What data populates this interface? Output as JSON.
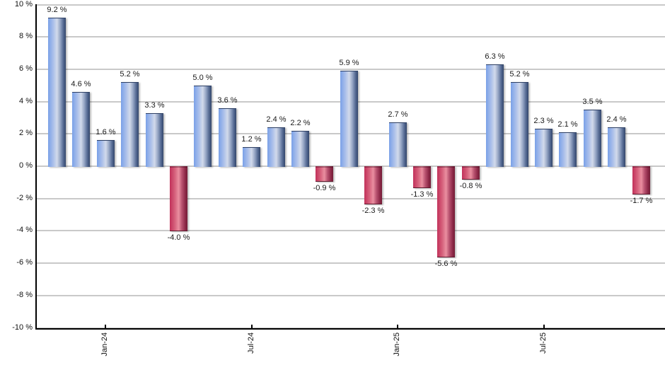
{
  "chart_data": {
    "type": "bar",
    "title": "",
    "xlabel": "",
    "ylabel": "",
    "ylim": [
      -10,
      10
    ],
    "y_step": 2,
    "grid": "on",
    "legend": "none",
    "y_tick_labels": [
      "10 %",
      "8 %",
      "6 %",
      "4 %",
      "2 %",
      "0 %",
      "-2 %",
      "-4 %",
      "-6 %",
      "-8 %",
      "-10 %"
    ],
    "values": [
      9.2,
      4.6,
      1.6,
      5.2,
      3.3,
      -4.0,
      5.0,
      3.6,
      1.2,
      2.4,
      2.2,
      -0.9,
      5.9,
      -2.3,
      2.7,
      -1.3,
      -5.6,
      -0.8,
      6.3,
      5.2,
      2.3,
      2.1,
      3.5,
      2.4,
      -1.7
    ],
    "data_labels": [
      "9.2 %",
      "4.6 %",
      "1.6 %",
      "5.2 %",
      "3.3 %",
      "-4.0 %",
      "5.0 %",
      "3.6 %",
      "1.2 %",
      "2.4 %",
      "2.2 %",
      "-0.9 %",
      "5.9 %",
      "-2.3 %",
      "2.7 %",
      "-1.3 %",
      "-5.6 %",
      "-0.8 %",
      "6.3 %",
      "5.2 %",
      "2.3 %",
      "2.1 %",
      "3.5 %",
      "2.4 %",
      "-1.7 %"
    ],
    "x_tick_labels": [
      {
        "label": "Jan-24",
        "bar_index": 2
      },
      {
        "label": "Jul-24",
        "bar_index": 8
      },
      {
        "label": "Jan-25",
        "bar_index": 14
      },
      {
        "label": "Jul-25",
        "bar_index": 20
      }
    ],
    "colors": {
      "positive_bar": "#7aa1e8",
      "positive_bar_highlight": "#d2daeb",
      "positive_bar_dark": "#33466b",
      "negative_bar": "#c2315a",
      "negative_bar_highlight": "#ea8fa0",
      "negative_bar_dark": "#731f38",
      "gridline": "#c9c9c9",
      "axis": "#000000",
      "label_text": "#1a1a1a",
      "background": "#ffffff"
    }
  }
}
